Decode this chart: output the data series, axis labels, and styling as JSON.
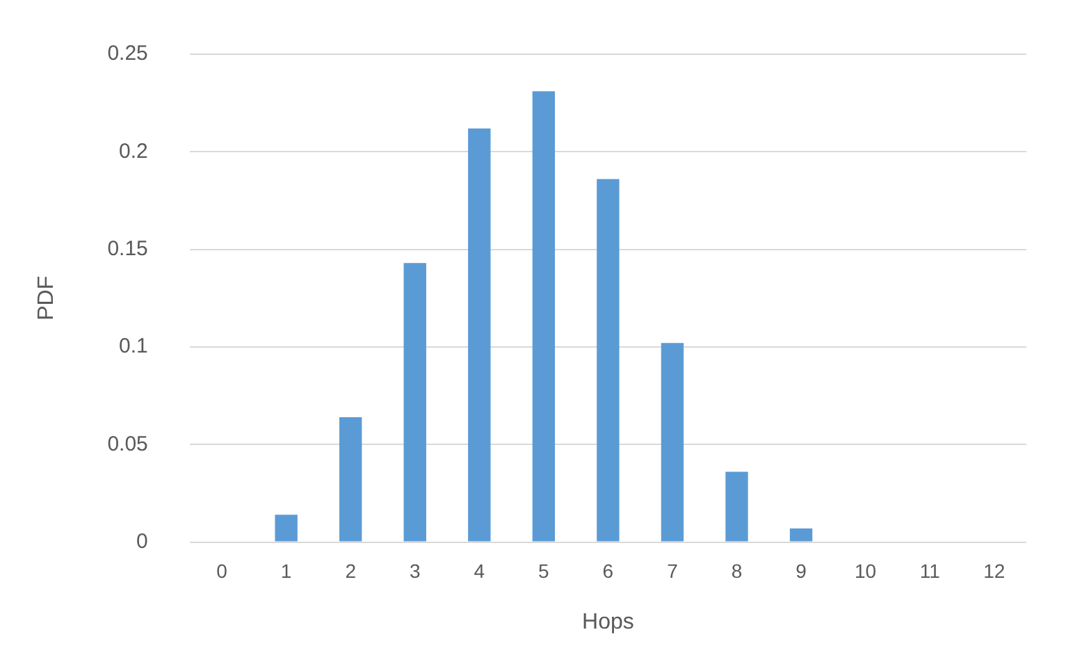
{
  "chart_data": {
    "type": "bar",
    "xlabel": "Hops",
    "ylabel": "PDF",
    "categories": [
      "0",
      "1",
      "2",
      "3",
      "4",
      "5",
      "6",
      "7",
      "8",
      "9",
      "10",
      "11",
      "12"
    ],
    "values": [
      0,
      0.014,
      0.064,
      0.143,
      0.212,
      0.231,
      0.186,
      0.102,
      0.036,
      0.007,
      0,
      0,
      0
    ],
    "color": "#5b9bd5",
    "ylim": [
      0,
      0.25
    ],
    "yticks": [
      0,
      0.05,
      0.1,
      0.15,
      0.2,
      0.25
    ],
    "grid": "y",
    "legend": false
  }
}
